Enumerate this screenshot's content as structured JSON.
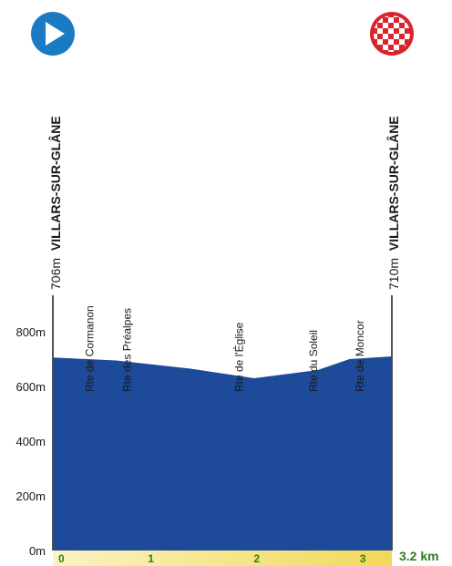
{
  "start": {
    "elevation": "706m",
    "name": "VILLARS-SUR-GLÂNE",
    "icon": "start-play-icon"
  },
  "finish": {
    "elevation": "710m",
    "name": "VILLARS-SUR-GLÂNE",
    "icon": "finish-checkered-flag-icon"
  },
  "colors": {
    "profile_fill": "#1d4a99",
    "start_icon": "#1a7ac4",
    "finish_icon": "#d9232d",
    "axis_band": "#f3e07a",
    "km_text": "#2e7d1a"
  },
  "chart_data": {
    "type": "area",
    "xlabel": "",
    "ylabel": "",
    "x_unit": "km",
    "x_max_label": "3.2 km",
    "xlim": [
      0,
      3.2
    ],
    "ylim": [
      0,
      900
    ],
    "x_ticks": [
      {
        "value": 0,
        "label": "0"
      },
      {
        "value": 1,
        "label": "1"
      },
      {
        "value": 2,
        "label": "2"
      },
      {
        "value": 3,
        "label": "3"
      }
    ],
    "y_ticks": [
      {
        "value": 0,
        "label": "0m"
      },
      {
        "value": 200,
        "label": "200m"
      },
      {
        "value": 400,
        "label": "400m"
      },
      {
        "value": 600,
        "label": "600m"
      },
      {
        "value": 800,
        "label": "800m"
      }
    ],
    "profile": [
      {
        "x": 0,
        "y": 706
      },
      {
        "x": 0.6,
        "y": 695
      },
      {
        "x": 1.3,
        "y": 665
      },
      {
        "x": 1.9,
        "y": 630
      },
      {
        "x": 2.5,
        "y": 660
      },
      {
        "x": 2.8,
        "y": 700
      },
      {
        "x": 3.2,
        "y": 710
      }
    ],
    "climbs": [
      {
        "name": "Rte de Cormanon",
        "x": 0.35
      },
      {
        "name": "Rte des Préalpes",
        "x": 0.7
      },
      {
        "name": "Rte de l'Église",
        "x": 1.76
      },
      {
        "name": "Rte du Soleil",
        "x": 2.46
      },
      {
        "name": "Rte de Moncor",
        "x": 2.9
      }
    ]
  }
}
